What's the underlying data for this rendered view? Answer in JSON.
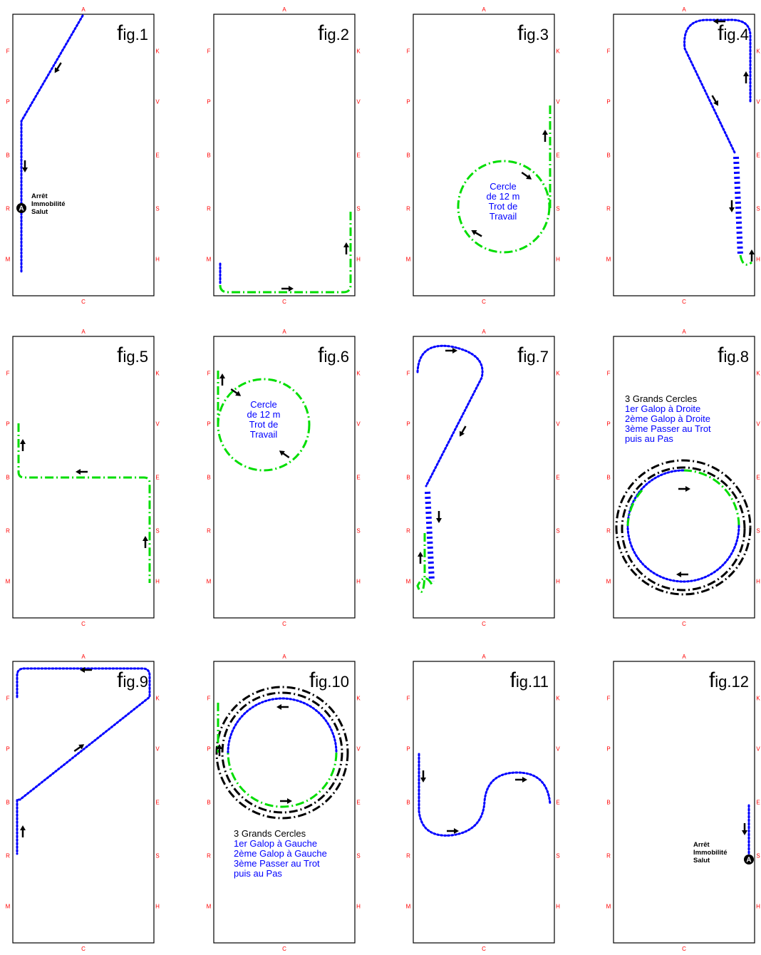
{
  "letters": {
    "top": "A",
    "bottom": "C",
    "left": [
      "F",
      "P",
      "B",
      "R",
      "M"
    ],
    "right": [
      "K",
      "V",
      "E",
      "S",
      "H"
    ]
  },
  "colors": {
    "arena_border": "#000000",
    "letter_text": "#ff0000",
    "walk_line": "#0000ff",
    "trot_line": "#00dd00",
    "canter_line": "#000000",
    "caption_blue": "#0000ff",
    "caption_black": "#000000"
  },
  "figures": [
    {
      "label_prefix": "f",
      "label_text": "ig.1",
      "notes": [],
      "halt": {
        "marker": "A",
        "text": [
          "Arrêt",
          "Immobilité",
          "Salut"
        ]
      }
    },
    {
      "label_prefix": "f",
      "label_text": "ig.2",
      "notes": [],
      "halt": null
    },
    {
      "label_prefix": "f",
      "label_text": "ig.3",
      "notes": [
        {
          "lines": [
            "Cercle",
            "de 12 m",
            "Trot de",
            "Travail"
          ],
          "color": "blue"
        }
      ],
      "halt": null
    },
    {
      "label_prefix": "f",
      "label_text": "ig.4",
      "notes": [],
      "halt": null
    },
    {
      "label_prefix": "f",
      "label_text": "ig.5",
      "notes": [],
      "halt": null
    },
    {
      "label_prefix": "f",
      "label_text": "ig.6",
      "notes": [
        {
          "lines": [
            "Cercle",
            "de 12 m",
            "Trot de",
            "Travail"
          ],
          "color": "blue"
        }
      ],
      "halt": null
    },
    {
      "label_prefix": "f",
      "label_text": "ig.7",
      "notes": [],
      "halt": null
    },
    {
      "label_prefix": "f",
      "label_text": "ig.8",
      "notes": [
        {
          "lines": [
            "3 Grands Cercles"
          ],
          "color": "black"
        },
        {
          "lines": [
            "1er Galop à Droite",
            "2ème Galop à Droite",
            "3ème Passer au Trot",
            "puis au Pas"
          ],
          "color": "blue"
        }
      ],
      "halt": null
    },
    {
      "label_prefix": "f",
      "label_text": "ig.9",
      "notes": [],
      "halt": null
    },
    {
      "label_prefix": "f",
      "label_text": "ig.10",
      "notes": [
        {
          "lines": [
            "3 Grands Cercles"
          ],
          "color": "black"
        },
        {
          "lines": [
            "1er Galop à Gauche",
            "2ème Galop à Gauche",
            "3ème Passer au Trot",
            "puis au Pas"
          ],
          "color": "blue"
        }
      ],
      "halt": null
    },
    {
      "label_prefix": "f",
      "label_text": "ig.11",
      "notes": [],
      "halt": null
    },
    {
      "label_prefix": "f",
      "label_text": "ig.12",
      "notes": [],
      "halt": {
        "marker": "A",
        "text": [
          "Arrêt",
          "Immobilité",
          "Salut"
        ]
      }
    }
  ]
}
